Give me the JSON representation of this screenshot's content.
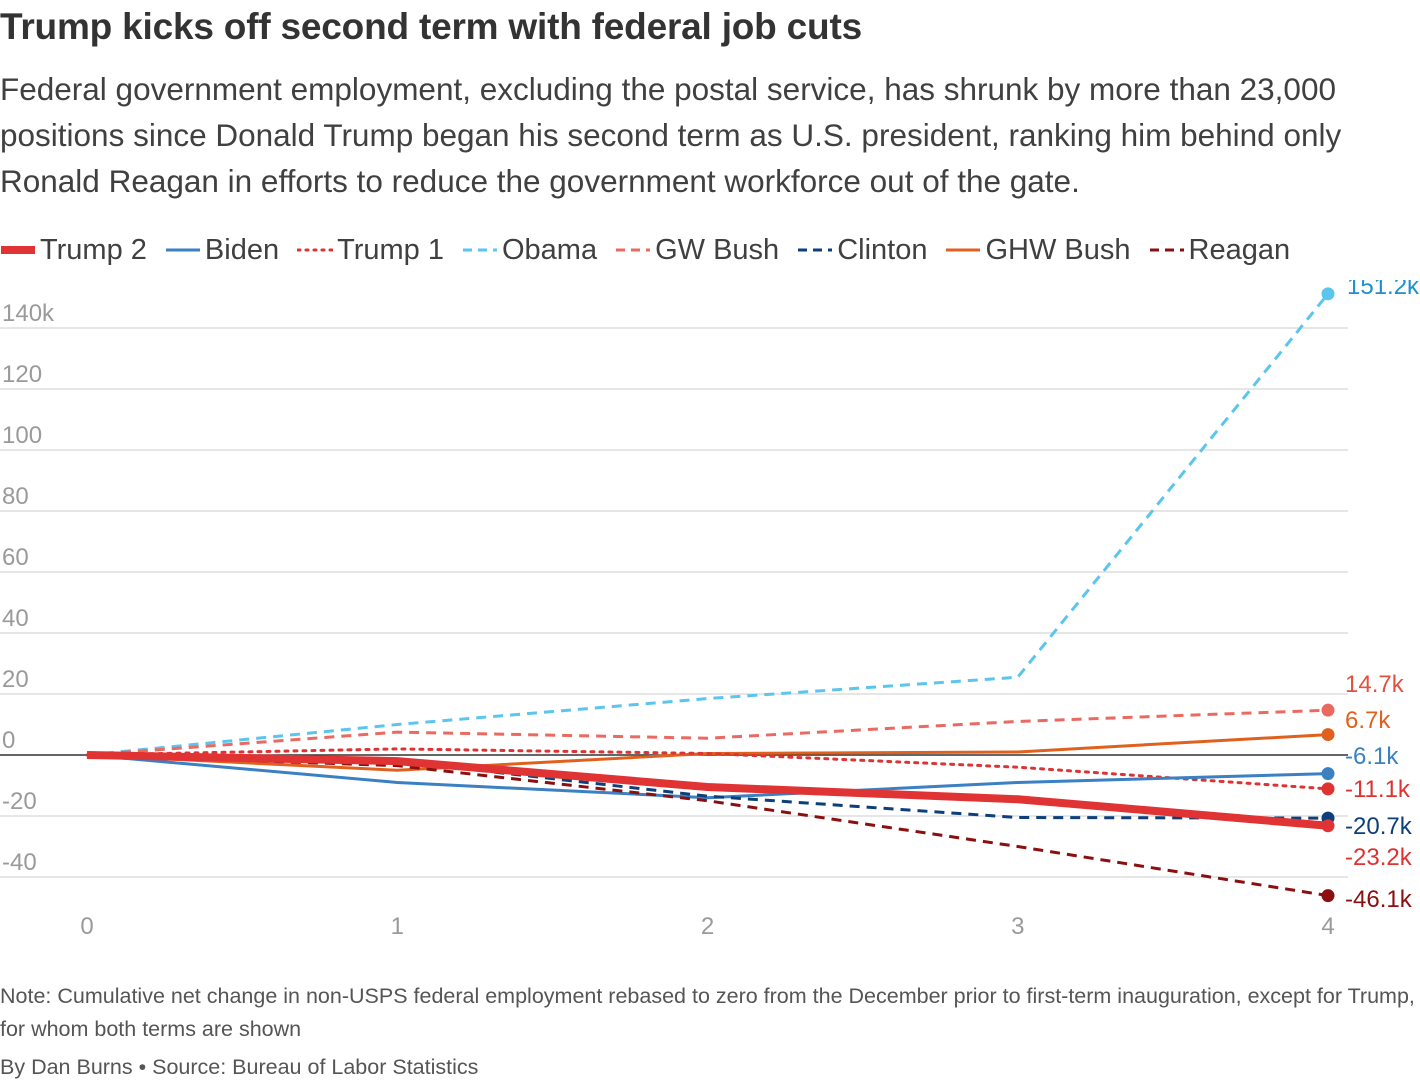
{
  "title": "Trump kicks off second term with federal job cuts",
  "subtitle": "Federal government employment, excluding the postal service, has shrunk by more than 23,000 positions since Donald Trump began his second term as U.S. president, ranking him behind only Ronald Reagan in efforts to reduce the government workforce out of the gate.",
  "note": "Note: Cumulative net change in non-USPS federal employment rebased to zero from the December prior to first-term inauguration, except for Trump, for whom both terms are shown",
  "byline": "By Dan Burns • Source: Bureau of Labor Statistics",
  "chart_data": {
    "type": "line",
    "title": "Trump kicks off second term with federal job cuts",
    "xlabel": "",
    "ylabel": "",
    "x_ticks": [
      "0",
      "1",
      "2",
      "3",
      "4"
    ],
    "y_ticks": [
      "-40",
      "-20",
      "0",
      "20",
      "40",
      "60",
      "80",
      "100",
      "120",
      "140k"
    ],
    "xlim": [
      0,
      4
    ],
    "ylim": [
      -50,
      150
    ],
    "grid": true,
    "legend_position": "top",
    "series": [
      {
        "name": "Obama",
        "color": "#5bc5ee",
        "style": "dash",
        "width": 3,
        "x": [
          0,
          1,
          2,
          3,
          4
        ],
        "y": [
          0,
          10,
          18.5,
          25.5,
          151.2
        ],
        "end_label": "151.2k"
      },
      {
        "name": "GW Bush",
        "color": "#ea6a62",
        "style": "dash",
        "width": 3,
        "x": [
          0,
          1,
          2,
          3,
          4
        ],
        "y": [
          0,
          7.5,
          5.5,
          11,
          14.7
        ],
        "end_label": "14.7k"
      },
      {
        "name": "GHW Bush",
        "color": "#e0611d",
        "style": "solid",
        "width": 3,
        "x": [
          0,
          1,
          2,
          3,
          4
        ],
        "y": [
          0,
          -5,
          0.5,
          1,
          6.7
        ],
        "end_label": "6.7k"
      },
      {
        "name": "Trump 1",
        "color": "#dd3333",
        "style": "dot",
        "width": 3,
        "x": [
          0,
          1,
          2,
          3,
          4
        ],
        "y": [
          0,
          2,
          0.5,
          -4,
          -11.1
        ],
        "end_label": "-11.1k"
      },
      {
        "name": "Biden",
        "color": "#3a80c2",
        "style": "solid",
        "width": 3,
        "x": [
          0,
          1,
          2,
          3,
          4
        ],
        "y": [
          0,
          -9,
          -14,
          -9,
          -6.1
        ],
        "end_label": "-6.1k"
      },
      {
        "name": "Clinton",
        "color": "#0d3f7a",
        "style": "dash",
        "width": 3,
        "x": [
          0,
          1,
          2,
          3,
          4
        ],
        "y": [
          0,
          -2,
          -13.5,
          -20.5,
          -20.7
        ],
        "end_label": "-20.7k"
      },
      {
        "name": "Reagan",
        "color": "#8b0f0f",
        "style": "dash",
        "width": 3,
        "x": [
          0,
          1,
          2,
          3,
          4
        ],
        "y": [
          0,
          -3.5,
          -15,
          -30,
          -46.1
        ],
        "end_label": "-46.1k"
      },
      {
        "name": "Trump 2",
        "color": "#e03434",
        "style": "solid",
        "width": 8,
        "x": [
          0,
          1,
          2,
          3,
          4
        ],
        "y": [
          0,
          -2,
          -10.5,
          -14.5,
          -23.2
        ],
        "end_label": "-23.2k"
      }
    ],
    "legend": [
      {
        "name": "Trump 2",
        "color": "#e03434",
        "style": "solid",
        "width": 8
      },
      {
        "name": "Biden",
        "color": "#3a80c2",
        "style": "solid",
        "width": 3
      },
      {
        "name": "Trump 1",
        "color": "#dd3333",
        "style": "dot",
        "width": 3
      },
      {
        "name": "Obama",
        "color": "#5bc5ee",
        "style": "dash",
        "width": 3
      },
      {
        "name": "GW Bush",
        "color": "#ea6a62",
        "style": "dash",
        "width": 3
      },
      {
        "name": "Clinton",
        "color": "#0d3f7a",
        "style": "dash",
        "width": 3
      },
      {
        "name": "GHW Bush",
        "color": "#e0611d",
        "style": "solid",
        "width": 3
      },
      {
        "name": "Reagan",
        "color": "#8b0f0f",
        "style": "dash",
        "width": 3
      }
    ],
    "end_labels": [
      {
        "text": "151.2k",
        "color": "#1f8fd0"
      },
      {
        "text": "14.7k",
        "color": "#e0523f"
      },
      {
        "text": "6.7k",
        "color": "#e0611d"
      },
      {
        "text": "-6.1k",
        "color": "#3a80c2"
      },
      {
        "text": "-11.1k",
        "color": "#dd3333"
      },
      {
        "text": "-20.7k",
        "color": "#0d3f7a"
      },
      {
        "text": "-23.2k",
        "color": "#dd3333"
      },
      {
        "text": "-46.1k",
        "color": "#8b0f0f"
      }
    ]
  }
}
